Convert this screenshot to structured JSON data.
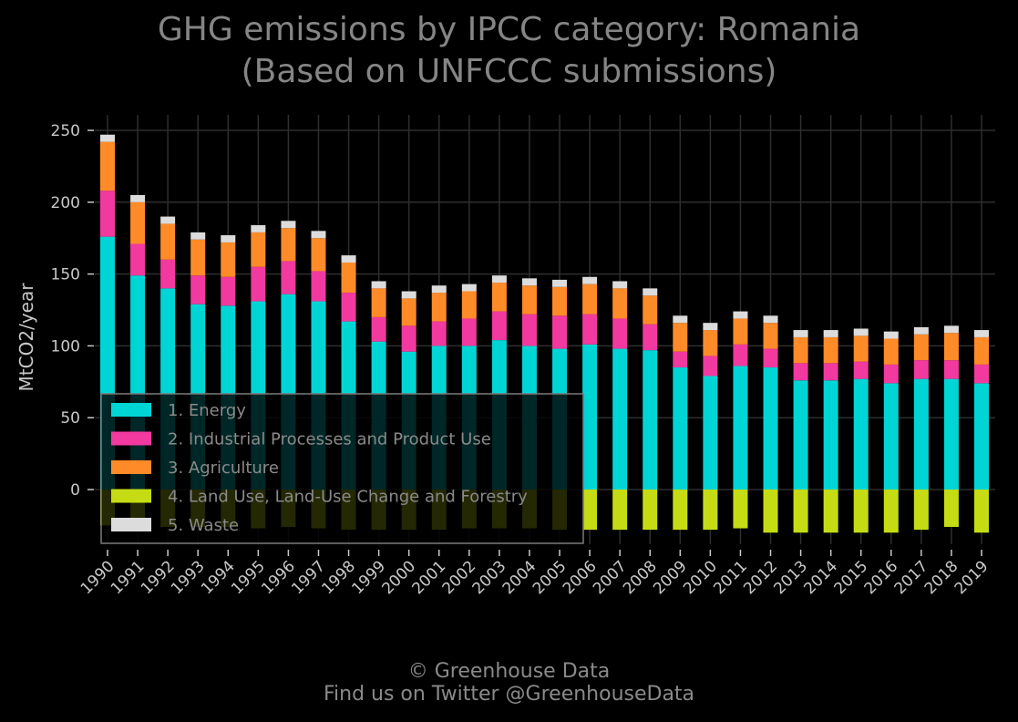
{
  "title_line1": "GHG emissions by IPCC category: Romania",
  "title_line2": "(Based on UNFCCC submissions)",
  "credit_line1": "© Greenhouse Data",
  "credit_line2": "Find us on Twitter @GreenhouseData",
  "chart_data": {
    "type": "bar",
    "stacked": true,
    "ylabel": "MtCO2/year",
    "xlabel": "",
    "ylim": [
      -40,
      260
    ],
    "yticks": [
      0,
      50,
      100,
      150,
      200,
      250
    ],
    "grid": true,
    "legend_position": "bottom-left",
    "categories": [
      "1990",
      "1991",
      "1992",
      "1993",
      "1994",
      "1995",
      "1996",
      "1997",
      "1998",
      "1999",
      "2000",
      "2001",
      "2002",
      "2003",
      "2004",
      "2005",
      "2006",
      "2007",
      "2008",
      "2009",
      "2010",
      "2011",
      "2012",
      "2013",
      "2014",
      "2015",
      "2016",
      "2017",
      "2018",
      "2019"
    ],
    "series": [
      {
        "name": "1. Energy",
        "color": "#00d5d5",
        "values": [
          176,
          149,
          140,
          129,
          128,
          131,
          136,
          131,
          117,
          103,
          96,
          100,
          100,
          104,
          100,
          98,
          101,
          98,
          97,
          85,
          79,
          86,
          85,
          76,
          76,
          77,
          74,
          77,
          77,
          74
        ]
      },
      {
        "name": "2. Industrial Processes and Product Use",
        "color": "#f2399f",
        "values": [
          32,
          22,
          20,
          20,
          20,
          24,
          23,
          21,
          20,
          17,
          18,
          17,
          19,
          20,
          22,
          23,
          21,
          21,
          18,
          11,
          14,
          15,
          13,
          12,
          12,
          12,
          13,
          13,
          13,
          13
        ]
      },
      {
        "name": "3. Agriculture",
        "color": "#ff8b28",
        "values": [
          34,
          29,
          25,
          25,
          24,
          24,
          23,
          23,
          21,
          20,
          19,
          20,
          19,
          20,
          20,
          20,
          21,
          21,
          20,
          20,
          18,
          18,
          18,
          18,
          18,
          18,
          18,
          18,
          19,
          19
        ]
      },
      {
        "name": "4. Land Use, Land-Use Change and Forestry",
        "color": "#c5dc14",
        "values": [
          -25,
          -25,
          -26,
          -26,
          -26,
          -27,
          -26,
          -27,
          -28,
          -28,
          -28,
          -28,
          -27,
          -27,
          -27,
          -28,
          -28,
          -28,
          -28,
          -28,
          -28,
          -27,
          -30,
          -30,
          -30,
          -30,
          -30,
          -28,
          -26,
          -30
        ]
      },
      {
        "name": "5. Waste",
        "color": "#dcdcdc",
        "values": [
          5,
          5,
          5,
          5,
          5,
          5,
          5,
          5,
          5,
          5,
          5,
          5,
          5,
          5,
          5,
          5,
          5,
          5,
          5,
          5,
          5,
          5,
          5,
          5,
          5,
          5,
          5,
          5,
          5,
          5
        ]
      }
    ]
  }
}
